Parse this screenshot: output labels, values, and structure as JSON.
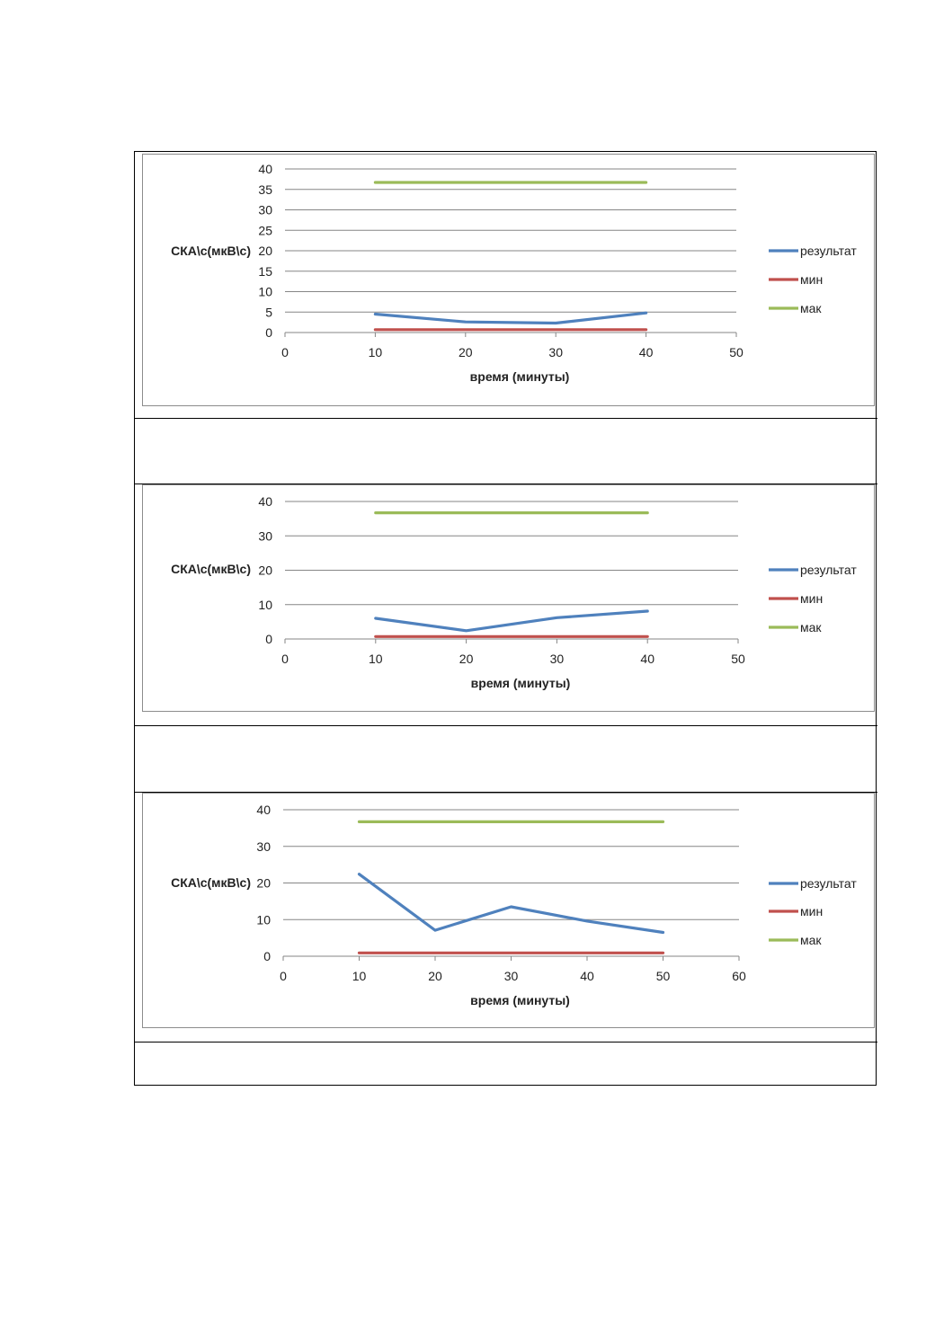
{
  "colors": {
    "result": "#4f81bd",
    "min": "#c0504d",
    "max": "#9bbb59",
    "grid": "#868686",
    "frame": "#8c8c8c"
  },
  "chart_data": [
    {
      "type": "line",
      "xlabel": "время (минуты)",
      "ylabel": "СКА\\с(мкВ\\с)",
      "xlim": [
        0,
        50
      ],
      "ylim": [
        0,
        40
      ],
      "xticks": [
        0,
        10,
        20,
        30,
        40,
        50
      ],
      "yticks": [
        0,
        5,
        10,
        15,
        20,
        25,
        30,
        35,
        40
      ],
      "grid": true,
      "legend": "right",
      "series": [
        {
          "name": "результат",
          "color": "#4f81bd",
          "x": [
            10,
            20,
            30,
            40
          ],
          "y": [
            4.5,
            2.6,
            2.3,
            4.8
          ]
        },
        {
          "name": "мин",
          "color": "#c0504d",
          "x": [
            10,
            20,
            30,
            40
          ],
          "y": [
            0.7,
            0.7,
            0.7,
            0.7
          ]
        },
        {
          "name": "мак",
          "color": "#9bbb59",
          "x": [
            10,
            20,
            30,
            40
          ],
          "y": [
            36.7,
            36.7,
            36.7,
            36.7
          ]
        }
      ]
    },
    {
      "type": "line",
      "xlabel": "время (минуты)",
      "ylabel": "СКА\\с(мкВ\\с)",
      "xlim": [
        0,
        50
      ],
      "ylim": [
        0,
        40
      ],
      "xticks": [
        0,
        10,
        20,
        30,
        40,
        50
      ],
      "yticks": [
        0,
        10,
        20,
        30,
        40
      ],
      "grid": true,
      "legend": "right",
      "series": [
        {
          "name": "результат",
          "color": "#4f81bd",
          "x": [
            10,
            20,
            30,
            40
          ],
          "y": [
            6.0,
            2.4,
            6.2,
            8.1
          ]
        },
        {
          "name": "мин",
          "color": "#c0504d",
          "x": [
            10,
            20,
            30,
            40
          ],
          "y": [
            0.7,
            0.7,
            0.7,
            0.7
          ]
        },
        {
          "name": "мак",
          "color": "#9bbb59",
          "x": [
            10,
            20,
            30,
            40
          ],
          "y": [
            36.7,
            36.7,
            36.7,
            36.7
          ]
        }
      ]
    },
    {
      "type": "line",
      "xlabel": "время (минуты)",
      "ylabel": "СКА\\с(мкВ\\с)",
      "xlim": [
        0,
        60
      ],
      "ylim": [
        0,
        40
      ],
      "xticks": [
        0,
        10,
        20,
        30,
        40,
        50,
        60
      ],
      "yticks": [
        0,
        10,
        20,
        30,
        40
      ],
      "grid": true,
      "legend": "right",
      "series": [
        {
          "name": "результат",
          "color": "#4f81bd",
          "x": [
            10,
            20,
            30,
            40,
            50
          ],
          "y": [
            22.4,
            7.1,
            13.5,
            9.6,
            6.5
          ]
        },
        {
          "name": "мин",
          "color": "#c0504d",
          "x": [
            10,
            20,
            30,
            40,
            50
          ],
          "y": [
            0.9,
            0.9,
            0.9,
            0.9,
            0.9
          ]
        },
        {
          "name": "мак",
          "color": "#9bbb59",
          "x": [
            10,
            20,
            30,
            40,
            50
          ],
          "y": [
            36.7,
            36.7,
            36.7,
            36.7,
            36.7
          ]
        }
      ]
    }
  ]
}
